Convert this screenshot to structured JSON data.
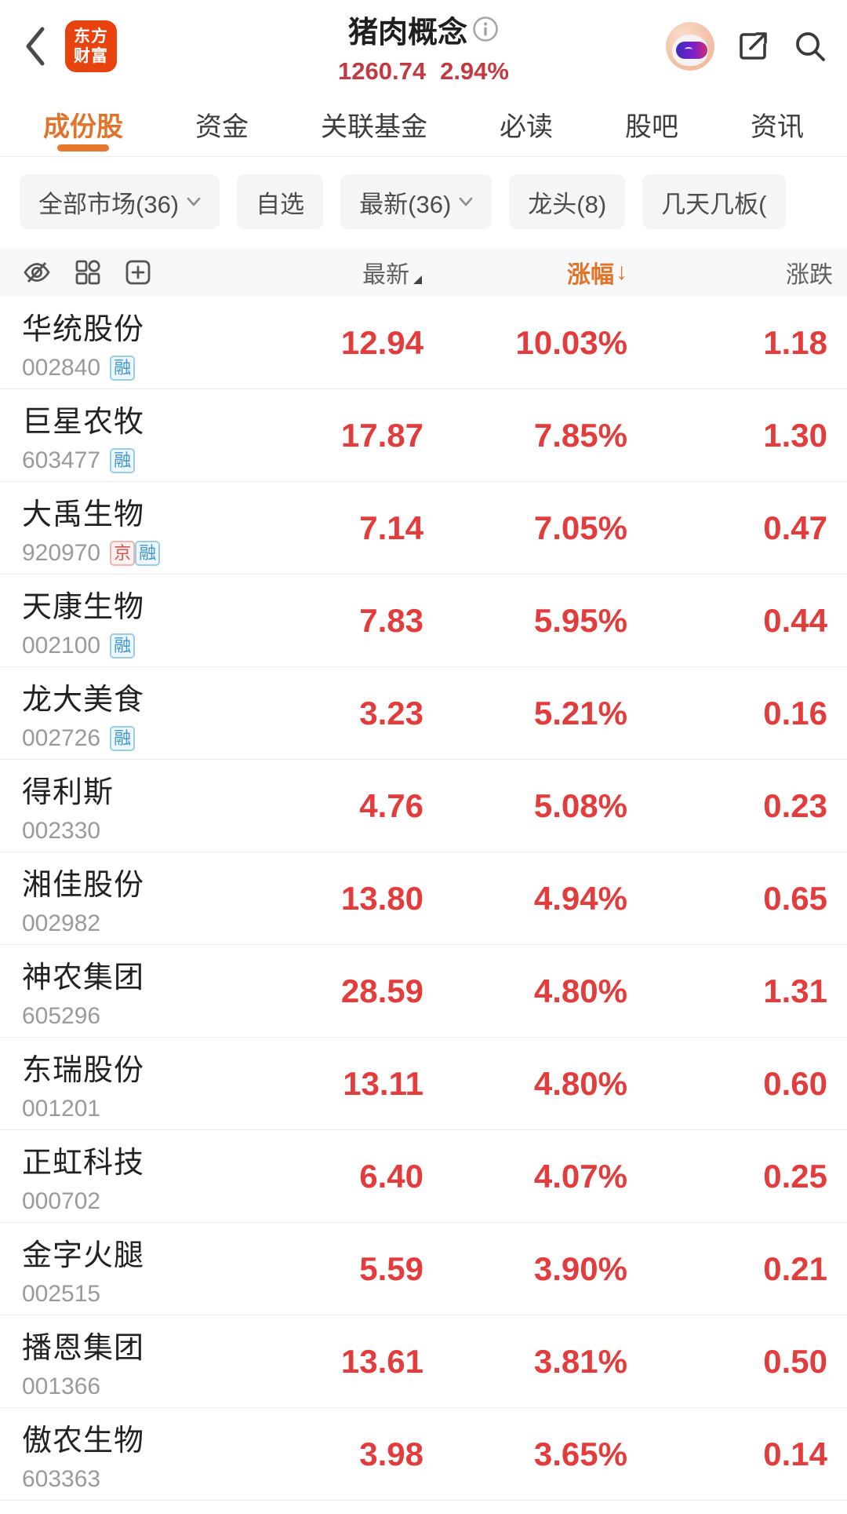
{
  "header": {
    "logo_line1": "东方",
    "logo_line2": "财富",
    "title": "猪肉概念",
    "index_value": "1260.74",
    "index_change": "2.94%"
  },
  "tabs": [
    {
      "label": "成份股",
      "active": true
    },
    {
      "label": "资金",
      "active": false
    },
    {
      "label": "关联基金",
      "active": false
    },
    {
      "label": "必读",
      "active": false
    },
    {
      "label": "股吧",
      "active": false
    },
    {
      "label": "资讯",
      "active": false
    }
  ],
  "filters": [
    {
      "label": "全部市场(36)",
      "caret": true
    },
    {
      "label": "自选",
      "caret": false
    },
    {
      "label": "最新(36)",
      "caret": true
    },
    {
      "label": "龙头(8)",
      "caret": false
    },
    {
      "label": "几天几板(",
      "caret": false
    }
  ],
  "table": {
    "columns": {
      "latest": "最新",
      "change_pct": "涨幅",
      "change_pct_arrow": "↓",
      "change": "涨跌"
    },
    "rows": [
      {
        "name": "华统股份",
        "code": "002840",
        "tags": [
          {
            "text": "融",
            "color": "blue",
            "name": "margin-trading-badge"
          }
        ],
        "price": "12.94",
        "change_pct": "10.03%",
        "change": "1.18"
      },
      {
        "name": "巨星农牧",
        "code": "603477",
        "tags": [
          {
            "text": "融",
            "color": "blue",
            "name": "margin-trading-badge"
          }
        ],
        "price": "17.87",
        "change_pct": "7.85%",
        "change": "1.30"
      },
      {
        "name": "大禹生物",
        "code": "920970",
        "tags": [
          {
            "text": "京",
            "color": "red",
            "name": "beijing-exchange-badge"
          },
          {
            "text": "融",
            "color": "blue",
            "name": "margin-trading-badge"
          }
        ],
        "price": "7.14",
        "change_pct": "7.05%",
        "change": "0.47"
      },
      {
        "name": "天康生物",
        "code": "002100",
        "tags": [
          {
            "text": "融",
            "color": "blue",
            "name": "margin-trading-badge"
          }
        ],
        "price": "7.83",
        "change_pct": "5.95%",
        "change": "0.44"
      },
      {
        "name": "龙大美食",
        "code": "002726",
        "tags": [
          {
            "text": "融",
            "color": "blue",
            "name": "margin-trading-badge"
          }
        ],
        "price": "3.23",
        "change_pct": "5.21%",
        "change": "0.16"
      },
      {
        "name": "得利斯",
        "code": "002330",
        "tags": [],
        "price": "4.76",
        "change_pct": "5.08%",
        "change": "0.23"
      },
      {
        "name": "湘佳股份",
        "code": "002982",
        "tags": [],
        "price": "13.80",
        "change_pct": "4.94%",
        "change": "0.65"
      },
      {
        "name": "神农集团",
        "code": "605296",
        "tags": [],
        "price": "28.59",
        "change_pct": "4.80%",
        "change": "1.31"
      },
      {
        "name": "东瑞股份",
        "code": "001201",
        "tags": [],
        "price": "13.11",
        "change_pct": "4.80%",
        "change": "0.60"
      },
      {
        "name": "正虹科技",
        "code": "000702",
        "tags": [],
        "price": "6.40",
        "change_pct": "4.07%",
        "change": "0.25"
      },
      {
        "name": "金字火腿",
        "code": "002515",
        "tags": [],
        "price": "5.59",
        "change_pct": "3.90%",
        "change": "0.21"
      },
      {
        "name": "播恩集团",
        "code": "001366",
        "tags": [],
        "price": "13.61",
        "change_pct": "3.81%",
        "change": "0.50"
      },
      {
        "name": "傲农生物",
        "code": "603363",
        "tags": [],
        "price": "3.98",
        "change_pct": "3.65%",
        "change": "0.14"
      }
    ]
  },
  "colors": {
    "accent_orange": "#e2732a",
    "up_red": "#e23c3c",
    "index_red": "#c13a42",
    "badge_blue": "#3f96c8",
    "badge_red": "#d9534f",
    "logo_orange": "#e8430f"
  }
}
